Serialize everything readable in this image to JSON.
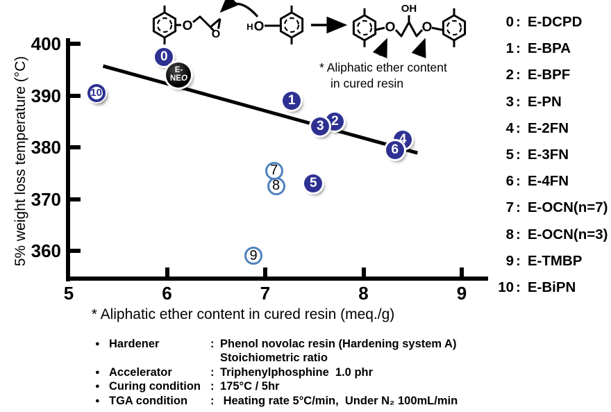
{
  "axes": {
    "y_title": "5% weight loss temperature (°C)",
    "x_title": "* Aliphatic ether content in cured resin (meq./g)"
  },
  "annotation": {
    "line1": "* Aliphatic ether content",
    "line2": "in cured resin"
  },
  "scheme": {
    "ether_o": "O",
    "epoxide_o": "O",
    "phenol_h": "H",
    "phenol_o": "O",
    "product_oh": "OH",
    "product_o1": "O",
    "product_o2": "O"
  },
  "legend": {
    "separator": ":",
    "items": [
      {
        "num": "0",
        "name": "E-DCPD"
      },
      {
        "num": "1",
        "name": "E-BPA"
      },
      {
        "num": "2",
        "name": "E-BPF"
      },
      {
        "num": "3",
        "name": "E-PN"
      },
      {
        "num": "4",
        "name": "E-2FN"
      },
      {
        "num": "5",
        "name": "E-3FN"
      },
      {
        "num": "6",
        "name": "E-4FN"
      },
      {
        "num": "7",
        "name": "E-OCN(n=7)"
      },
      {
        "num": "8",
        "name": "E-OCN(n=3)"
      },
      {
        "num": "9",
        "name": "E-TMBP"
      },
      {
        "num": "10",
        "name": "E-BiPN"
      }
    ]
  },
  "conditions": {
    "bullet": "●",
    "rows": [
      {
        "label": "Hardener",
        "colon": ":",
        "value": "Phenol novolac resin (Hardening system A)"
      },
      {
        "label": "",
        "colon": "",
        "value": "Stoichiometric ratio"
      },
      {
        "label": "Accelerator",
        "colon": ":",
        "value": "Triphenylphosphine  1.0 phr"
      },
      {
        "label": "Curing condition",
        "colon": ":",
        "value": "175°C / 5hr"
      },
      {
        "label": "TGA condition",
        "colon": ":",
        "value": " Heating rate 5°C/min,  Under N₂ 100mL/min"
      }
    ]
  },
  "chart_data": {
    "type": "scatter",
    "title": "",
    "xlabel": "* Aliphatic ether content in cured resin (meq./g)",
    "ylabel": "5% weight loss temperature (°C)",
    "xlim": [
      5,
      9
    ],
    "ylim": [
      355,
      401
    ],
    "x_ticks": [
      5,
      6,
      7,
      8,
      9
    ],
    "y_ticks": [
      400,
      390,
      380,
      370,
      360
    ],
    "grid": false,
    "legend_position": "right",
    "marker_colors": {
      "filled_fill": "#2E3192",
      "open_border": "#4F81BD",
      "ring_border": "#2E3192",
      "neo_fill": "#000000"
    },
    "points": [
      {
        "label": "9",
        "name": "E-TMBP",
        "x": 6.88,
        "y": 359.0,
        "style": "open"
      },
      {
        "label": "10",
        "name": "E-BiPN",
        "x": 5.28,
        "y": 390.5,
        "style": "ring"
      },
      {
        "label": "1",
        "name": "E-BPA",
        "x": 7.27,
        "y": 389.0,
        "style": "filled"
      },
      {
        "label": "2",
        "name": "E-BPF",
        "x": 7.71,
        "y": 385.0,
        "style": "filled"
      },
      {
        "label": "3",
        "name": "E-PN",
        "x": 7.56,
        "y": 384.0,
        "style": "filled"
      },
      {
        "label": "4",
        "name": "E-2FN",
        "x": 8.4,
        "y": 381.5,
        "style": "filled"
      },
      {
        "label": "6",
        "name": "E-4FN",
        "x": 8.32,
        "y": 379.5,
        "style": "filled"
      },
      {
        "label": "5",
        "name": "E-3FN",
        "x": 7.49,
        "y": 373.0,
        "style": "filled"
      },
      {
        "label": "8",
        "name": "E-OCN(n=3)",
        "x": 7.11,
        "y": 372.5,
        "style": "open"
      },
      {
        "label": "7",
        "name": "E-OCN(n=7)",
        "x": 7.09,
        "y": 375.5,
        "style": "open"
      },
      {
        "label": "0",
        "name": "E-DCPD",
        "x": 5.97,
        "y": 397.5,
        "style": "filled"
      },
      {
        "label": "E-NEO",
        "line1": "E-",
        "line2a": "NE",
        "line2b": "O",
        "x": 6.12,
        "y": 394.0,
        "style": "neo"
      }
    ],
    "trend_line": {
      "x1": 5.35,
      "y1": 395.7,
      "x2": 8.55,
      "y2": 378.9
    }
  }
}
